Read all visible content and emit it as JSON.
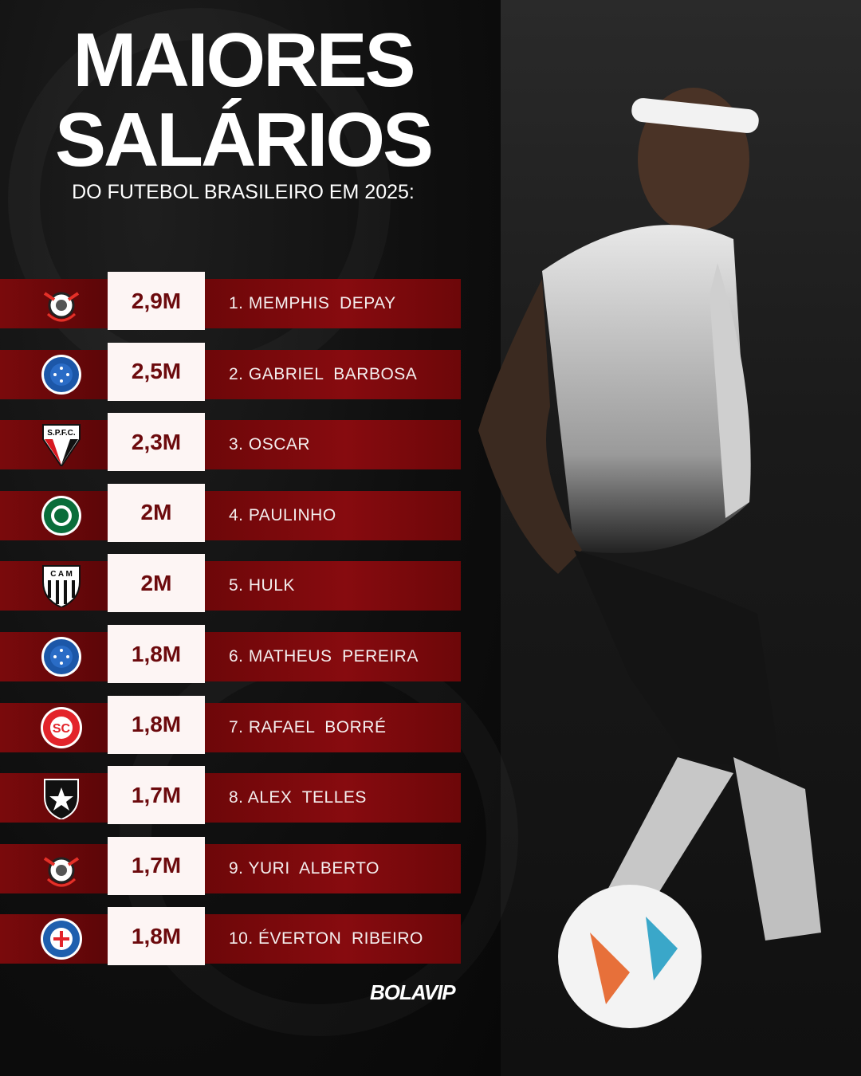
{
  "header": {
    "title_line1": "MAIORES",
    "title_line2": "SALÁRIOS",
    "subtitle": "DO FUTEBOL BRASILEIRO EM 2025:"
  },
  "ranking": [
    {
      "rank": "1.",
      "name": "MEMPHIS  DEPAY",
      "salary": "2,9M",
      "club_icon": "corinthians-crest"
    },
    {
      "rank": "2.",
      "name": "GABRIEL  BARBOSA",
      "salary": "2,5M",
      "club_icon": "cruzeiro-crest"
    },
    {
      "rank": "3.",
      "name": "OSCAR",
      "salary": "2,3M",
      "club_icon": "sao-paulo-crest",
      "club_lettering": "S.P.F.C."
    },
    {
      "rank": "4.",
      "name": "PAULINHO",
      "salary": "2M",
      "club_icon": "palmeiras-crest"
    },
    {
      "rank": "5.",
      "name": "HULK",
      "salary": "2M",
      "club_icon": "atletico-mineiro-crest",
      "club_lettering": "C A M"
    },
    {
      "rank": "6.",
      "name": "MATHEUS  PEREIRA",
      "salary": "1,8M",
      "club_icon": "cruzeiro-crest"
    },
    {
      "rank": "7.",
      "name": "RAFAEL  BORRÉ",
      "salary": "1,8M",
      "club_icon": "internacional-crest"
    },
    {
      "rank": "8.",
      "name": "ALEX  TELLES",
      "salary": "1,7M",
      "club_icon": "botafogo-crest"
    },
    {
      "rank": "9.",
      "name": "YURI  ALBERTO",
      "salary": "1,7M",
      "club_icon": "corinthians-crest"
    },
    {
      "rank": "10.",
      "name": "ÉVERTON  RIBEIRO",
      "salary": "1,8M",
      "club_icon": "bahia-crest"
    }
  ],
  "brand": {
    "logo": "BOLAVIP"
  },
  "colors": {
    "bar": "#7a0a0c",
    "box": "#fdf5f4",
    "salary_text": "#6c0a0d"
  }
}
